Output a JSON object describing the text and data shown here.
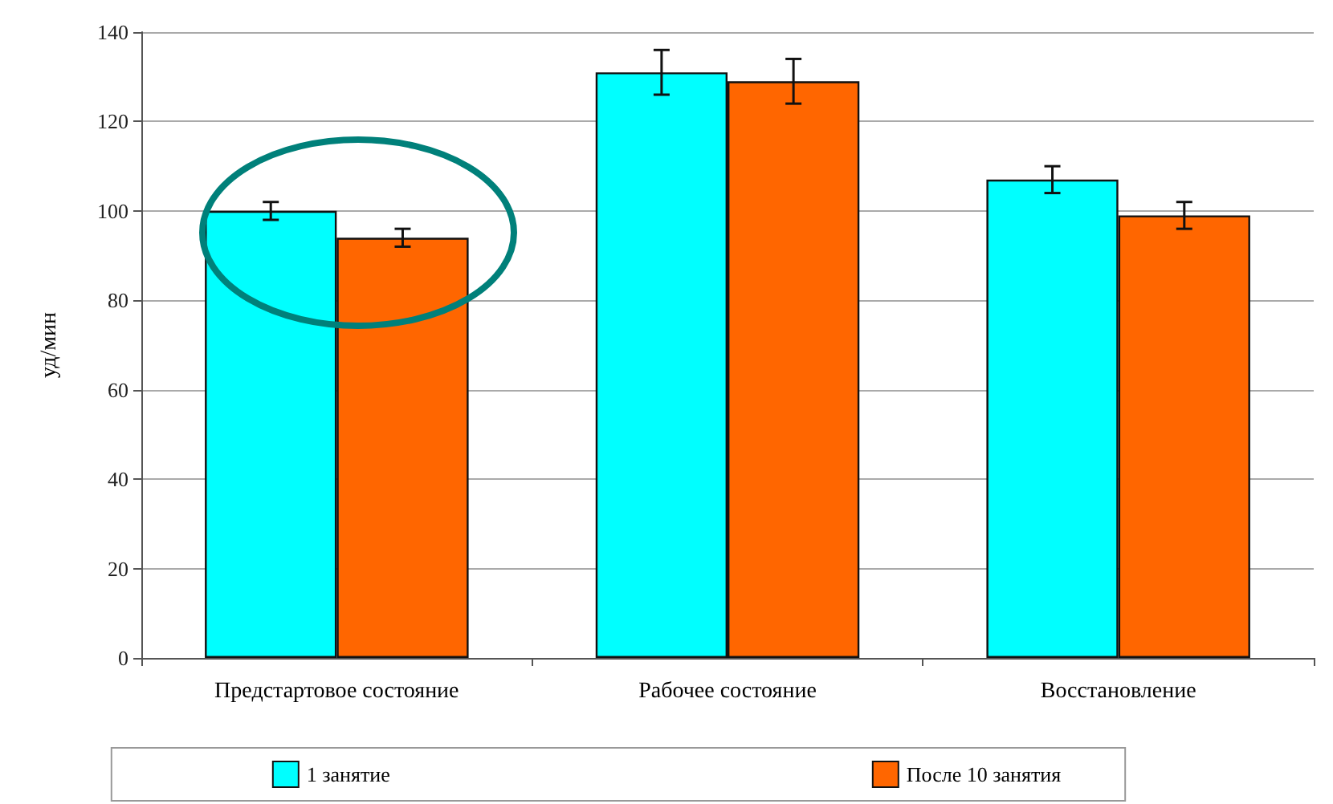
{
  "chart_data": {
    "type": "bar",
    "ylabel": "уд/мин",
    "categories": [
      "Предстартовое состояние",
      "Рабочее состояние",
      "Восстановление"
    ],
    "series": [
      {
        "name": "1 занятие",
        "color": "#00ffff",
        "values": [
          100,
          131,
          107
        ],
        "errors": [
          2,
          5,
          3
        ]
      },
      {
        "name": "После 10 занятия",
        "color": "#ff6600",
        "values": [
          94,
          129,
          99
        ],
        "errors": [
          2,
          5,
          3
        ]
      }
    ],
    "ylim": [
      0,
      140
    ],
    "yticks": [
      0,
      20,
      40,
      60,
      80,
      100,
      120,
      140
    ],
    "grid": "y",
    "legend": "bottom"
  }
}
